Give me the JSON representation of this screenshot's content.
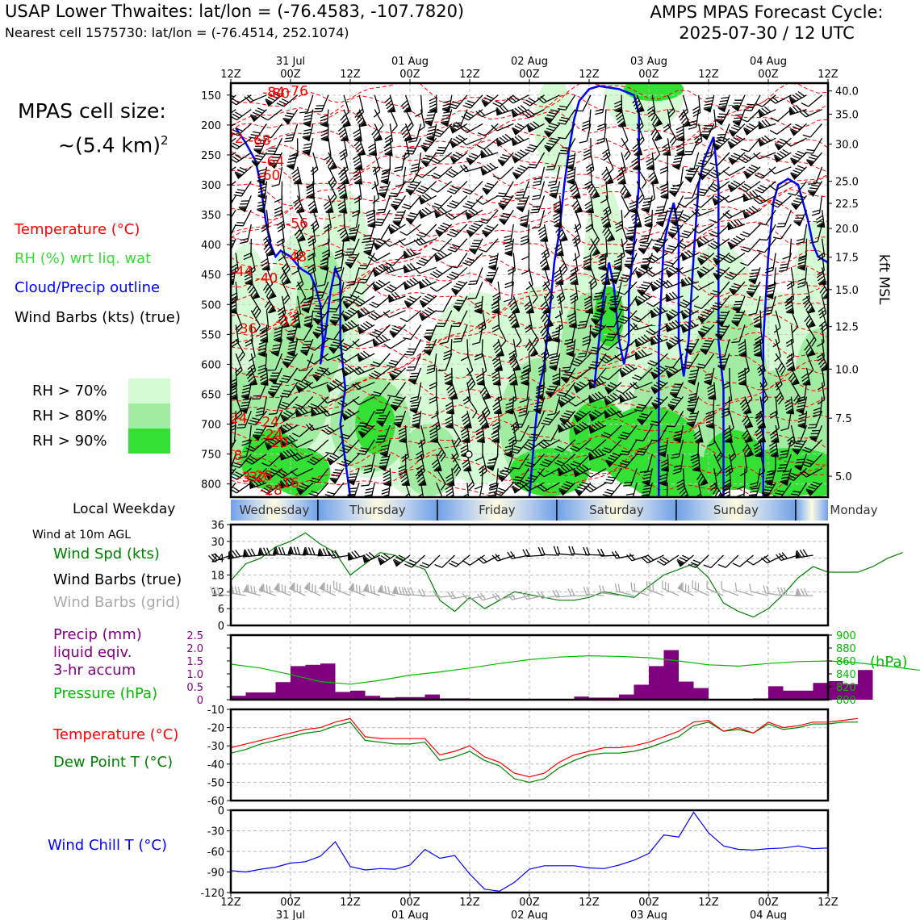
{
  "header": {
    "title_left": "USAP Lower Thwaites: lat/lon = (-76.4583, -107.7820)",
    "subtitle_left": "Nearest cell 1575730: lat/lon = (-76.4514, 252.1074)",
    "title_right_1": "AMPS MPAS Forecast Cycle:",
    "title_right_2": "2025-07-30 / 12 UTC"
  },
  "sidebar": {
    "cell_size_1": "MPAS cell size:",
    "cell_size_2": "~(5.4 km)",
    "cell_size_sup": "2",
    "legend_temp": "Temperature (°C)",
    "legend_rh": "RH (%) wrt liq. wat",
    "legend_cloud": "Cloud/Precip outline",
    "legend_wind": "Wind Barbs (kts) (true)",
    "rh_levels": [
      {
        "label": "RH > 70%",
        "color": "#d4fbd4"
      },
      {
        "label": "RH > 80%",
        "color": "#a0eca0"
      },
      {
        "label": "RH > 90%",
        "color": "#33e033"
      }
    ],
    "weekday_label": "Local Weekday",
    "wind_10m_label": "Wind at 10m AGL",
    "wind_spd_label": "Wind Spd (kts)",
    "wind_barbs_true_label": "Wind Barbs (true)",
    "wind_barbs_grid_label": "Wind Barbs (grid)",
    "precip_label_1": "Precip (mm)",
    "precip_label_2": "liquid eqiv.",
    "precip_label_3": "3-hr accum",
    "pressure_label": "Pressure (hPa)",
    "temp_label": "Temperature (°C)",
    "dew_label": "Dew Point T (°C)",
    "chill_label": "Wind Chill T (°C)"
  },
  "colors": {
    "temp": "#ff0000",
    "rh": "#33dd33",
    "cloud": "#0000ff",
    "precip": "#800080",
    "pressure": "#00bb00",
    "dew": "#008000",
    "windspd": "#008000",
    "grid_barb": "#aaaaaa"
  },
  "chart_data": [
    {
      "type": "heatmap",
      "name": "cross-section",
      "time_ticks_top": [
        "12Z",
        "00Z",
        "12Z",
        "00Z",
        "12Z",
        "00Z",
        "12Z",
        "00Z",
        "12Z",
        "00Z",
        "12Z"
      ],
      "date_ticks_top": [
        "31 Jul",
        "01 Aug",
        "02 Aug",
        "03 Aug",
        "04 Aug"
      ],
      "y_ticks_hpa": [
        150,
        200,
        250,
        300,
        350,
        400,
        450,
        500,
        550,
        600,
        650,
        700,
        750,
        800
      ],
      "y_ticks_kft": [
        "40.0",
        "35.0",
        "30.0",
        "25.0",
        "22.5",
        "20.0",
        "17.5",
        "15.0",
        "12.5",
        "10.0",
        "7.5",
        "5.0"
      ],
      "y_ticks_kft_hpa": [
        143,
        182,
        232,
        294,
        331,
        373,
        421,
        475,
        537,
        608,
        690,
        787
      ],
      "ylabel_right": "kft MSL",
      "ylim_hpa": [
        130,
        822
      ],
      "temp_labels": [
        {
          "text": "-72",
          "t": 0.3,
          "p": 222
        },
        {
          "text": "-68",
          "t": 5.8,
          "p": 225
        },
        {
          "text": "-64",
          "t": 8.5,
          "p": 261
        },
        {
          "text": "-60",
          "t": 7.7,
          "p": 284
        },
        {
          "text": "-84",
          "t": 8.6,
          "p": 145
        },
        {
          "text": "-80",
          "t": 9.6,
          "p": 147
        },
        {
          "text": "-76",
          "t": 13.3,
          "p": 143
        },
        {
          "text": "-56",
          "t": 13.3,
          "p": 364
        },
        {
          "text": "-48",
          "t": 13.0,
          "p": 420
        },
        {
          "text": "-44",
          "t": 2.2,
          "p": 444
        },
        {
          "text": "-40",
          "t": 7.2,
          "p": 456
        },
        {
          "text": "-36",
          "t": 3.0,
          "p": 540
        },
        {
          "text": "-32",
          "t": 11.2,
          "p": 528
        },
        {
          "text": "-24",
          "t": 1.1,
          "p": 690
        },
        {
          "text": "-24",
          "t": 7.5,
          "p": 696
        },
        {
          "text": "-24",
          "t": 8.2,
          "p": 717
        },
        {
          "text": "-20",
          "t": 9.3,
          "p": 730
        },
        {
          "text": "-32",
          "t": 4.9,
          "p": 788
        },
        {
          "text": "-28",
          "t": 6.1,
          "p": 786
        },
        {
          "text": "-28",
          "t": 8.1,
          "p": 810
        },
        {
          "text": "-28",
          "t": 0.1,
          "p": 752
        },
        {
          "text": "-16",
          "t": 11.5,
          "p": 798
        },
        {
          "text": "-3",
          "t": 2.6,
          "p": 788
        }
      ]
    },
    {
      "type": "table",
      "name": "local-weekday",
      "days": [
        "Wednesday",
        "Thursday",
        "Friday",
        "Saturday",
        "Sunday",
        "Monday"
      ]
    },
    {
      "type": "line",
      "name": "wind-speed",
      "ylabel": "Wind Spd (kts)",
      "ylim": [
        0,
        36
      ],
      "yticks": [
        0,
        6,
        12,
        18,
        24,
        30,
        36
      ],
      "x_step_hours": 3,
      "values": [
        16,
        22,
        24,
        28,
        30,
        33,
        29,
        26,
        18,
        22,
        26,
        25,
        22,
        20,
        9,
        5,
        10,
        6,
        9,
        12,
        11,
        10,
        9,
        9,
        10,
        12,
        11,
        10,
        14,
        18,
        20,
        22,
        17,
        8,
        5,
        3,
        6,
        11,
        17,
        21,
        19,
        19,
        19,
        21,
        24,
        26
      ]
    },
    {
      "type": "bar",
      "name": "precip",
      "ylabel": "Precip (mm)",
      "ylim": [
        0,
        2.5
      ],
      "yticks": [
        0,
        0.5,
        1.0,
        1.5,
        2.0,
        2.5
      ],
      "bar_width_hours": 3,
      "values": [
        0.15,
        0.28,
        0.28,
        0.68,
        1.3,
        1.35,
        1.4,
        0.3,
        0.35,
        0.15,
        0.08,
        0.1,
        0.1,
        0.2,
        0.05,
        0.05,
        0,
        0,
        0,
        0,
        0,
        0,
        0,
        0.12,
        0.08,
        0.08,
        0.2,
        0.58,
        1.3,
        1.92,
        0.7,
        0.45,
        0.02,
        0,
        0,
        0.05,
        0.52,
        0.35,
        0.35,
        0.65,
        0.72,
        0.6,
        1.15
      ]
    },
    {
      "type": "line",
      "name": "pressure",
      "ylabel": "(hPa)",
      "ylim": [
        800,
        900
      ],
      "yticks": [
        800,
        820,
        840,
        860,
        880,
        900
      ],
      "x_step_hours": 6,
      "values": [
        855,
        849,
        839,
        828,
        824,
        830,
        838,
        843,
        849,
        856,
        862,
        866,
        868,
        867,
        865,
        860,
        854,
        852,
        856,
        859,
        860,
        857,
        852,
        846,
        842
      ]
    },
    {
      "type": "line",
      "name": "temperature",
      "ylim": [
        -60,
        -10
      ],
      "yticks": [
        -60,
        -50,
        -40,
        -30,
        -20,
        -10
      ],
      "x_step_hours": 3,
      "series": [
        {
          "name": "Temperature (°C)",
          "values": [
            -31,
            -29,
            -27,
            -25,
            -23,
            -21,
            -20,
            -17,
            -15,
            -25,
            -26,
            -26,
            -26,
            -26,
            -35,
            -33,
            -30,
            -36,
            -39,
            -45,
            -47,
            -45,
            -39,
            -35,
            -33,
            -31,
            -31,
            -30,
            -28,
            -25,
            -22,
            -17,
            -16,
            -22,
            -20,
            -23,
            -17,
            -20,
            -19,
            -17,
            -17,
            -16,
            -15
          ]
        },
        {
          "name": "Dew Point T (°C)",
          "values": [
            -34,
            -32,
            -29,
            -27,
            -25,
            -23,
            -22,
            -19,
            -17,
            -27,
            -28,
            -29,
            -29,
            -28,
            -38,
            -36,
            -33,
            -38,
            -41,
            -48,
            -50,
            -48,
            -42,
            -38,
            -35,
            -34,
            -34,
            -33,
            -31,
            -28,
            -25,
            -19,
            -17,
            -22,
            -21,
            -23,
            -18,
            -21,
            -20,
            -18,
            -18,
            -17,
            -17
          ]
        }
      ]
    },
    {
      "type": "line",
      "name": "wind-chill",
      "ylabel": "Wind Chill T (°C)",
      "ylim": [
        -120,
        0
      ],
      "yticks": [
        -120,
        -90,
        -60,
        -30,
        0
      ],
      "x_step_hours": 3,
      "values": [
        -88,
        -90,
        -86,
        -83,
        -77,
        -75,
        -67,
        -46,
        -82,
        -87,
        -85,
        -86,
        -80,
        -57,
        -70,
        -66,
        -93,
        -115,
        -118,
        -105,
        -86,
        -81,
        -81,
        -81,
        -84,
        -85,
        -80,
        -73,
        -63,
        -36,
        -39,
        -3,
        -33,
        -52,
        -57,
        -58,
        -56,
        -55,
        -52,
        -56,
        -55
      ]
    }
  ],
  "bottom_axis": {
    "time_ticks": [
      "12Z",
      "00Z",
      "12Z",
      "00Z",
      "12Z",
      "00Z",
      "12Z",
      "00Z",
      "12Z",
      "00Z",
      "12Z"
    ],
    "date_ticks": [
      "31 Jul",
      "01 Aug",
      "02 Aug",
      "03 Aug",
      "04 Aug"
    ]
  }
}
